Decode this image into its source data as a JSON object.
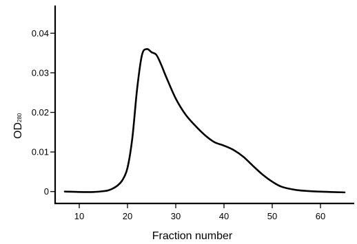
{
  "chart_data": {
    "type": "line",
    "title": "",
    "xlabel": "Fraction number",
    "ylabel": "OD",
    "ylabel_subscript": "280",
    "xlim": [
      5,
      67
    ],
    "ylim": [
      -0.003,
      0.047
    ],
    "x_ticks": [
      10,
      20,
      30,
      40,
      50,
      60
    ],
    "y_ticks": [
      0,
      0.01,
      0.02,
      0.03,
      0.04
    ],
    "x_tick_labels": [
      "10",
      "20",
      "30",
      "40",
      "50",
      "60"
    ],
    "y_tick_labels": [
      "0",
      "0.01",
      "0.02",
      "0.03",
      "0.04"
    ],
    "grid": false,
    "series": [
      {
        "x": [
          7,
          10,
          13,
          15,
          16,
          17,
          18,
          19,
          20,
          21,
          22,
          23,
          24,
          25,
          26,
          27,
          28,
          30,
          32,
          34,
          36,
          38,
          40,
          42,
          44,
          46,
          48,
          50,
          52,
          55,
          58,
          62,
          65
        ],
        "y": [
          0.0,
          -0.0001,
          -0.0001,
          0.0001,
          0.0003,
          0.0008,
          0.0016,
          0.003,
          0.006,
          0.0135,
          0.026,
          0.0345,
          0.036,
          0.0352,
          0.0345,
          0.032,
          0.029,
          0.0235,
          0.0195,
          0.0167,
          0.0143,
          0.0125,
          0.0116,
          0.0105,
          0.0088,
          0.0065,
          0.0043,
          0.0025,
          0.0012,
          0.0004,
          0.0001,
          -0.0001,
          -0.0002
        ],
        "color": "#000000"
      }
    ]
  }
}
